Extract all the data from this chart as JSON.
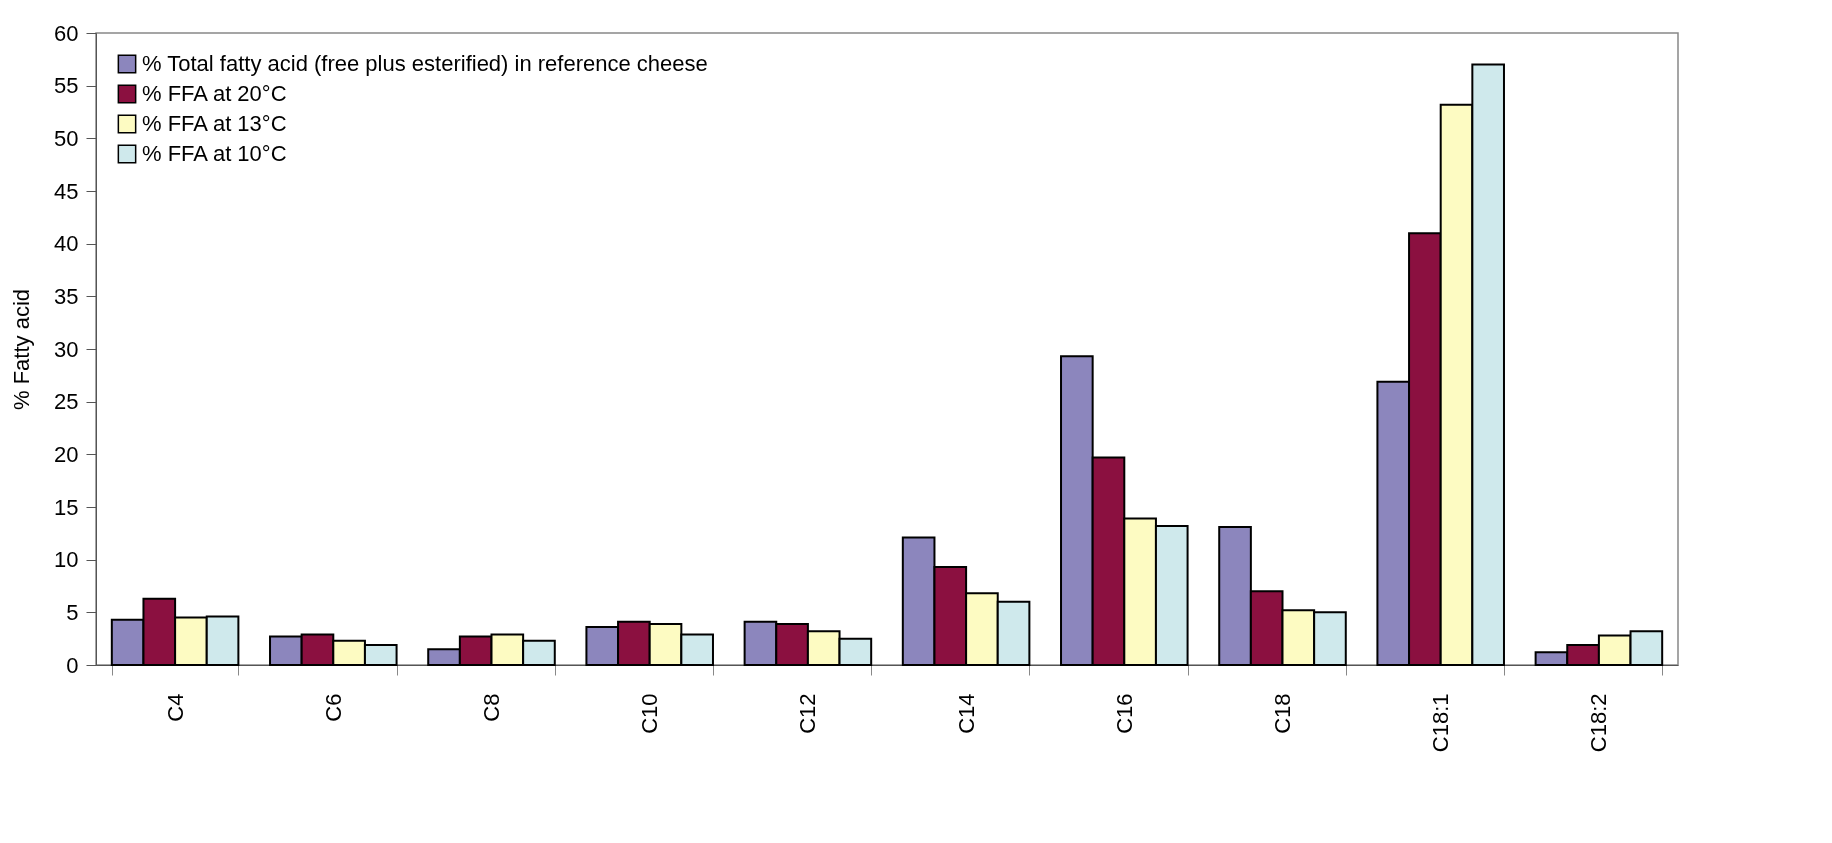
{
  "chart_data": {
    "type": "bar",
    "ylabel": "% Fatty acid",
    "categories": [
      "C4",
      "C6",
      "C8",
      "C10",
      "C12",
      "C14",
      "C16",
      "C18",
      "C18:1",
      "C18:2"
    ],
    "series": [
      {
        "name": "% Total fatty acid (free plus esterified) in reference cheese",
        "color": "#8c86bd",
        "values": [
          4.3,
          2.7,
          1.5,
          3.6,
          4.1,
          12.1,
          29.3,
          13.1,
          26.9,
          1.2
        ]
      },
      {
        "name": "% FFA  at 20°C",
        "color": "#8b1040",
        "values": [
          6.3,
          2.9,
          2.7,
          4.1,
          3.9,
          9.3,
          19.7,
          7.0,
          41.0,
          1.9
        ]
      },
      {
        "name": "% FFA at 13°C",
        "color": "#fdfbc2",
        "values": [
          4.5,
          2.3,
          2.9,
          3.9,
          3.2,
          6.8,
          13.9,
          5.2,
          53.2,
          2.8
        ]
      },
      {
        "name": "% FFA at 10°C",
        "color": "#cfe9ec",
        "values": [
          4.6,
          1.9,
          2.3,
          2.9,
          2.5,
          6.0,
          13.2,
          5.0,
          57.0,
          3.2
        ]
      }
    ],
    "ylim": [
      0,
      60
    ],
    "yticks": [
      0,
      5,
      10,
      15,
      20,
      25,
      30,
      35,
      40,
      45,
      50,
      55,
      60
    ],
    "grid": false,
    "legend": "top left"
  }
}
